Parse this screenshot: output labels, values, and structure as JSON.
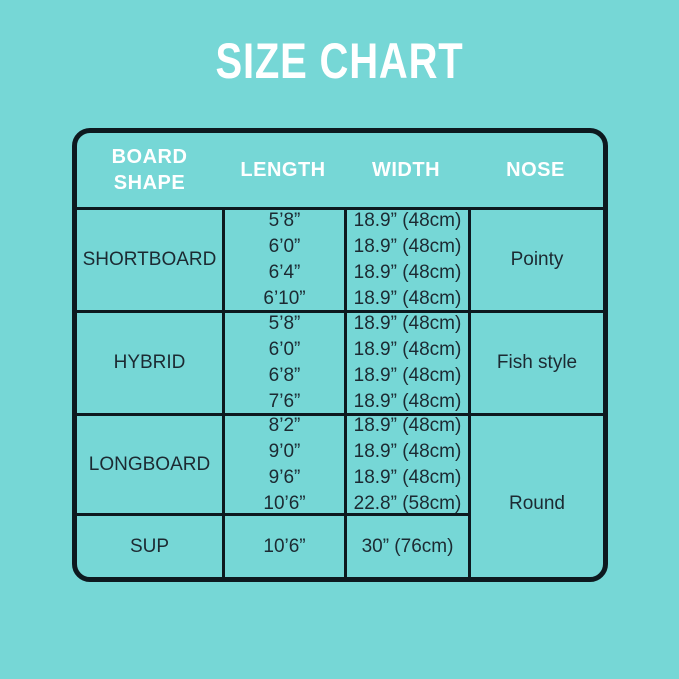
{
  "chart_data": {
    "type": "table",
    "title": "SIZE CHART",
    "columns": [
      "BOARD SHAPE",
      "LENGTH",
      "WIDTH",
      "NOSE"
    ],
    "rows": [
      [
        "SHORTBOARD",
        [
          "5’8”",
          "6’0”",
          "6’4”",
          "6’10”"
        ],
        [
          "18.9” (48cm)",
          "18.9” (48cm)",
          "18.9” (48cm)",
          "18.9” (48cm)"
        ],
        "Pointy"
      ],
      [
        "HYBRID",
        [
          "5’8”",
          "6’0”",
          "6’8”",
          "7’6”"
        ],
        [
          "18.9” (48cm)",
          "18.9” (48cm)",
          "18.9” (48cm)",
          "18.9” (48cm)"
        ],
        "Fish style"
      ],
      [
        "LONGBOARD",
        [
          "8’2”",
          "9’0”",
          "9’6”",
          "10’6”"
        ],
        [
          "18.9” (48cm)",
          "18.9” (48cm)",
          "18.9” (48cm)",
          "22.8” (58cm)"
        ],
        "Round"
      ],
      [
        "SUP",
        [
          "10’6”"
        ],
        [
          "30” (76cm)"
        ],
        "Round"
      ]
    ],
    "merged_cells": "NOSE value Round spans the LONGBOARD and SUP rows",
    "layout_hints": {
      "header_text_color": "#ffffff",
      "body_text_color": "#1c2a32",
      "grid_line_color": "#0d191f",
      "background_color": "#76d7d6",
      "outer_border": "rounded"
    }
  }
}
